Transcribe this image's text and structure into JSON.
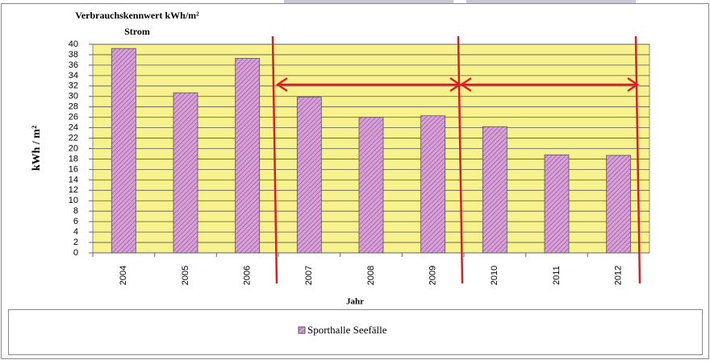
{
  "chart_data": {
    "type": "bar",
    "title": "Verbrauchskennwert  kWh/m²",
    "subtitle": "Strom",
    "y_label": "kWh / m²",
    "x_label": "Jahr",
    "categories": [
      "2004",
      "2005",
      "2006",
      "2007",
      "2008",
      "2009",
      "2010",
      "2011",
      "2012"
    ],
    "series": [
      {
        "name": "Sporthalle Seefälle",
        "color": "#d8a0d8",
        "values": [
          39.2,
          30.7,
          37.3,
          29.9,
          26,
          26.3,
          24.2,
          18.8,
          18.7
        ]
      }
    ],
    "ylim": [
      0,
      40
    ],
    "yticks": [
      0,
      2,
      4,
      6,
      8,
      10,
      12,
      14,
      16,
      18,
      20,
      22,
      24,
      26,
      28,
      30,
      32,
      34,
      36,
      38,
      40
    ],
    "grid": true,
    "legend": "bottom"
  }
}
